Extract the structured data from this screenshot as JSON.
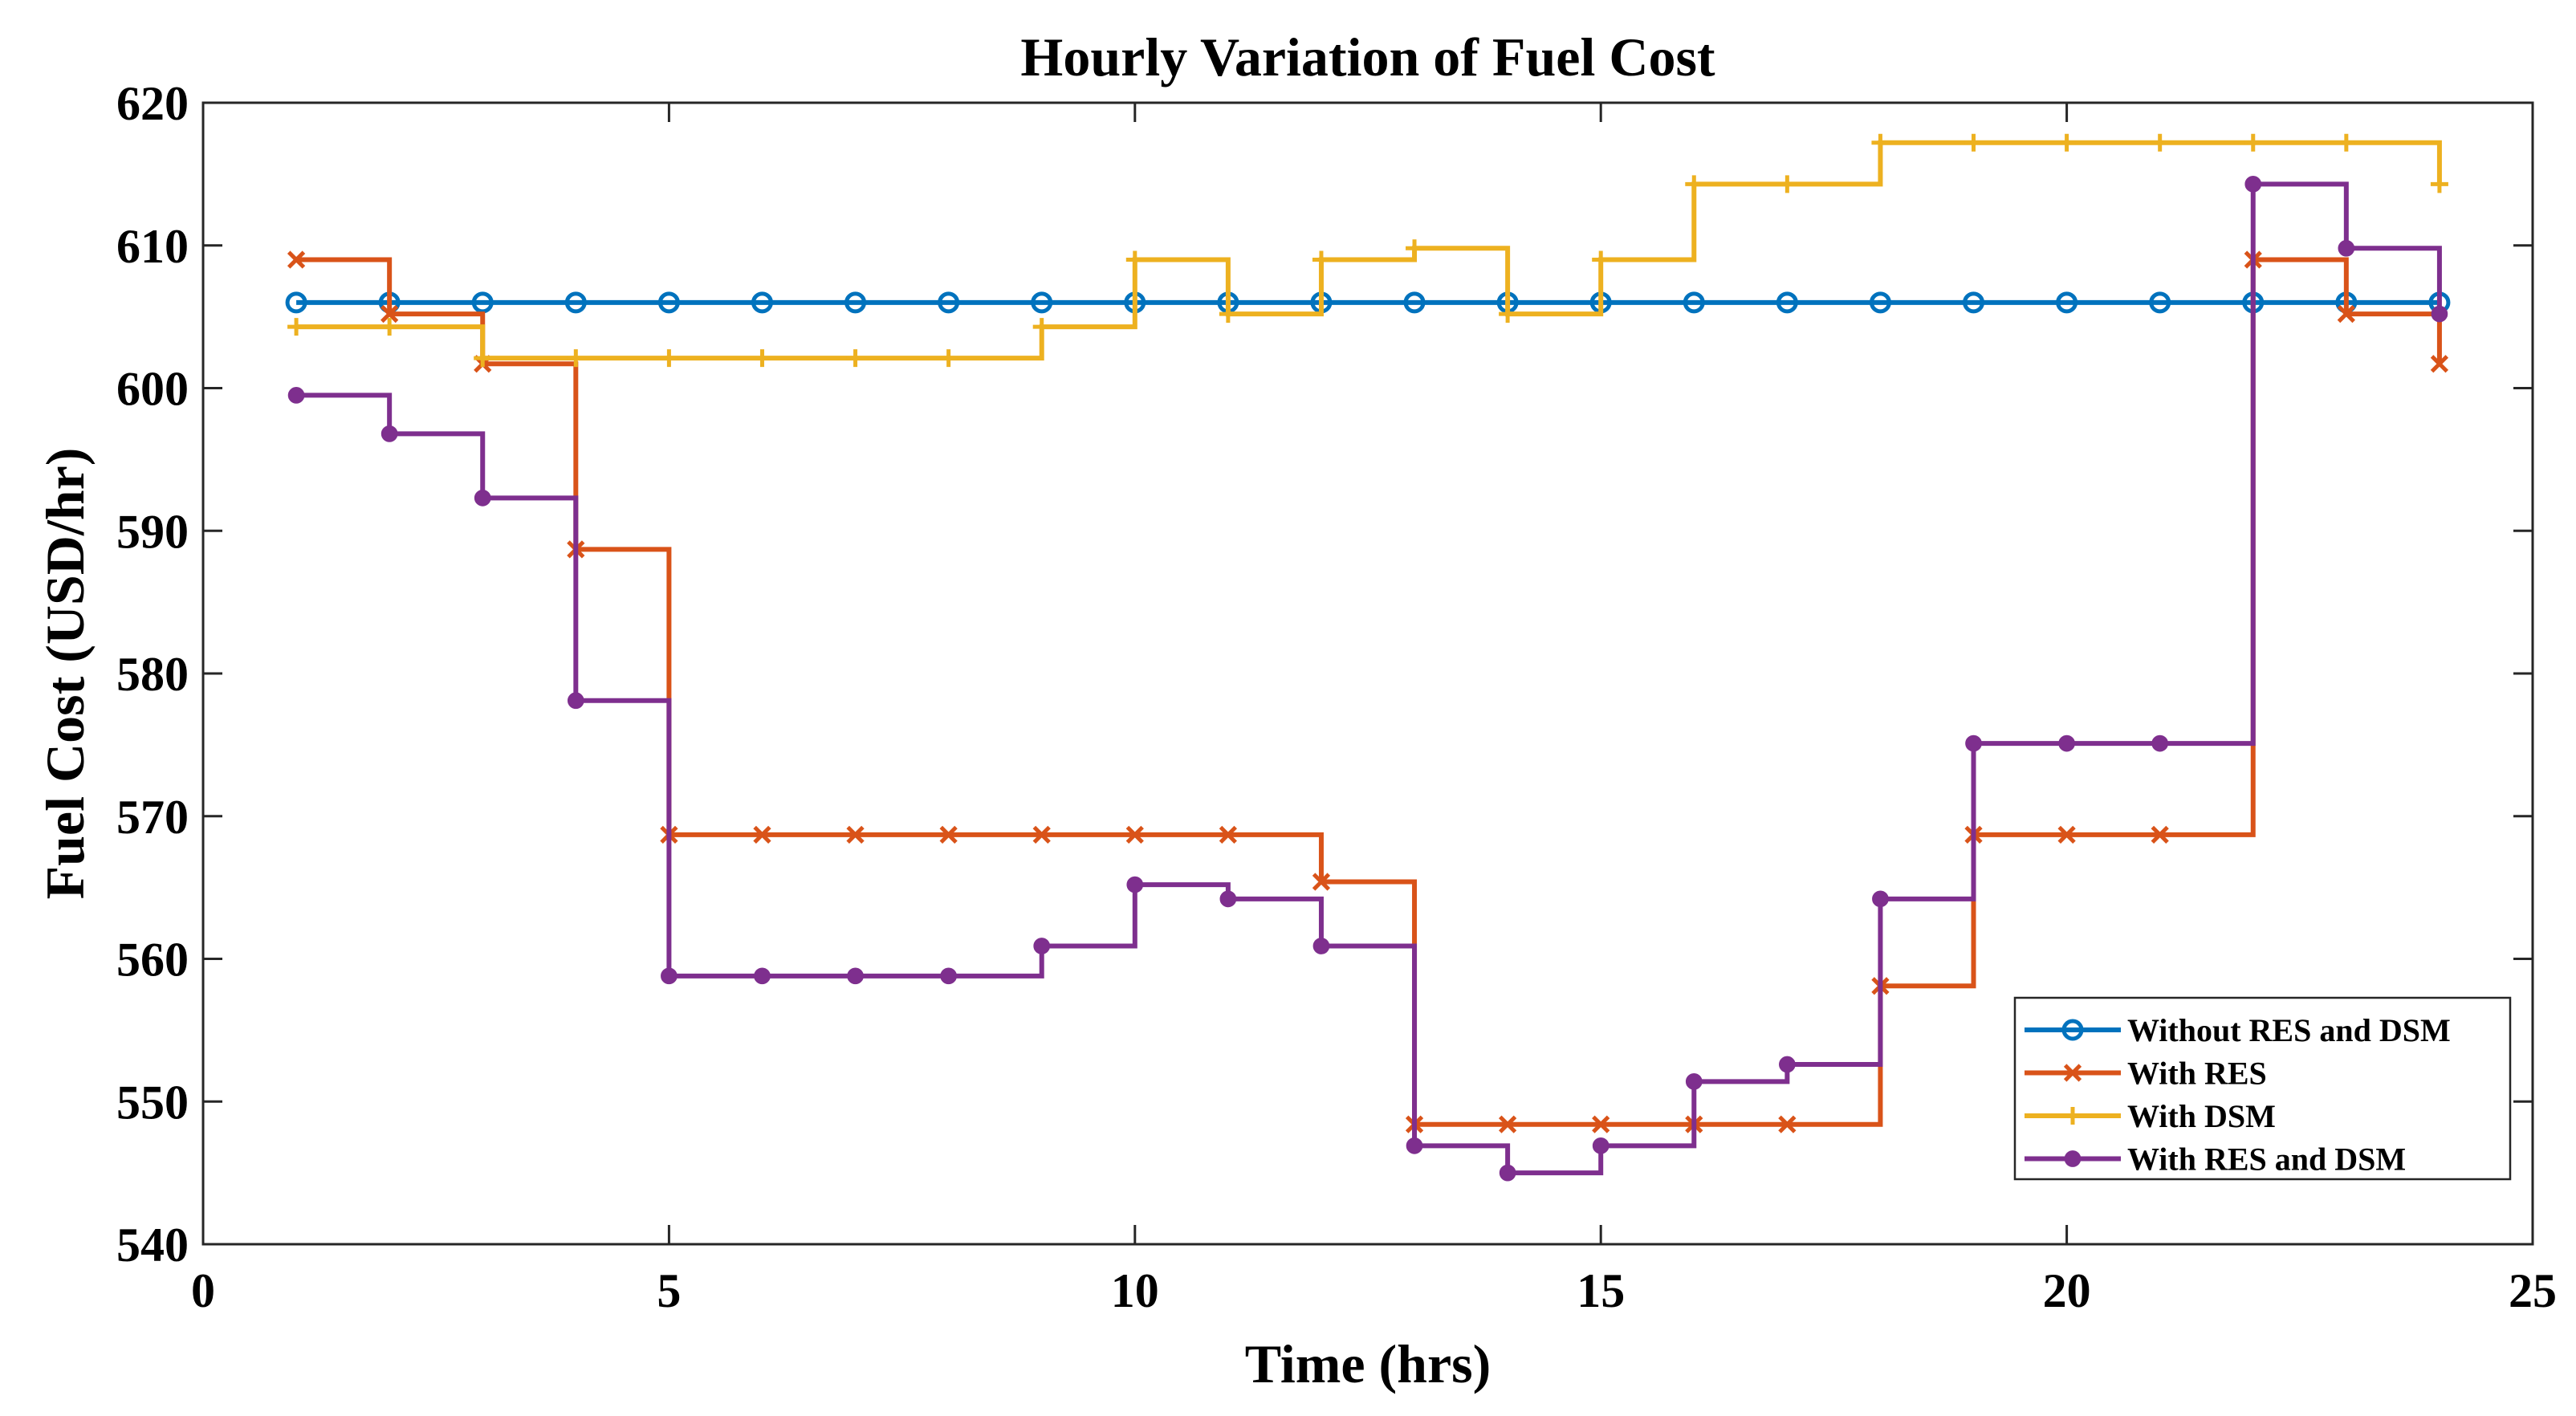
{
  "chart_data": {
    "type": "line",
    "step": true,
    "title": "Hourly Variation of Fuel Cost",
    "xlabel": "Time (hrs)",
    "ylabel": "Fuel Cost (USD/hr)",
    "xlim": [
      0,
      25
    ],
    "ylim": [
      540,
      620
    ],
    "xticks": [
      0,
      5,
      10,
      15,
      20,
      25
    ],
    "yticks": [
      540,
      550,
      560,
      570,
      580,
      590,
      600,
      610,
      620
    ],
    "grid": false,
    "legend_position": "bottom-right",
    "x": [
      1,
      2,
      3,
      4,
      5,
      6,
      7,
      8,
      9,
      10,
      11,
      12,
      13,
      14,
      15,
      16,
      17,
      18,
      19,
      20,
      21,
      22,
      23,
      24
    ],
    "series": [
      {
        "name": "Without RES and DSM",
        "color": "#0072BD",
        "marker": "circle",
        "values": [
          606,
          606,
          606,
          606,
          606,
          606,
          606,
          606,
          606,
          606,
          606,
          606,
          606,
          606,
          606,
          606,
          606,
          606,
          606,
          606,
          606,
          606,
          606,
          606
        ]
      },
      {
        "name": "With RES",
        "color": "#D95319",
        "marker": "x",
        "values": [
          609,
          605.2,
          601.7,
          588.7,
          568.7,
          568.7,
          568.7,
          568.7,
          568.7,
          568.7,
          568.7,
          565.4,
          548.4,
          548.4,
          548.4,
          548.4,
          548.4,
          558.1,
          568.7,
          568.7,
          568.7,
          609,
          605.2,
          601.7
        ]
      },
      {
        "name": "With DSM",
        "color": "#EDB120",
        "marker": "plus",
        "values": [
          604.3,
          604.3,
          602.1,
          602.1,
          602.1,
          602.1,
          602.1,
          602.1,
          604.3,
          609,
          605.2,
          609,
          609.8,
          605.2,
          609,
          614.3,
          614.3,
          617.2,
          617.2,
          617.2,
          617.2,
          617.2,
          617.2,
          614.3
        ]
      },
      {
        "name": "With RES and DSM",
        "color": "#7E2F8E",
        "marker": "dot",
        "values": [
          599.5,
          596.8,
          592.3,
          578.1,
          558.8,
          558.8,
          558.8,
          558.8,
          560.9,
          565.2,
          564.2,
          560.9,
          546.9,
          545,
          546.9,
          551.4,
          552.6,
          564.2,
          575.1,
          575.1,
          575.1,
          614.3,
          609.8,
          605.2
        ]
      }
    ]
  }
}
